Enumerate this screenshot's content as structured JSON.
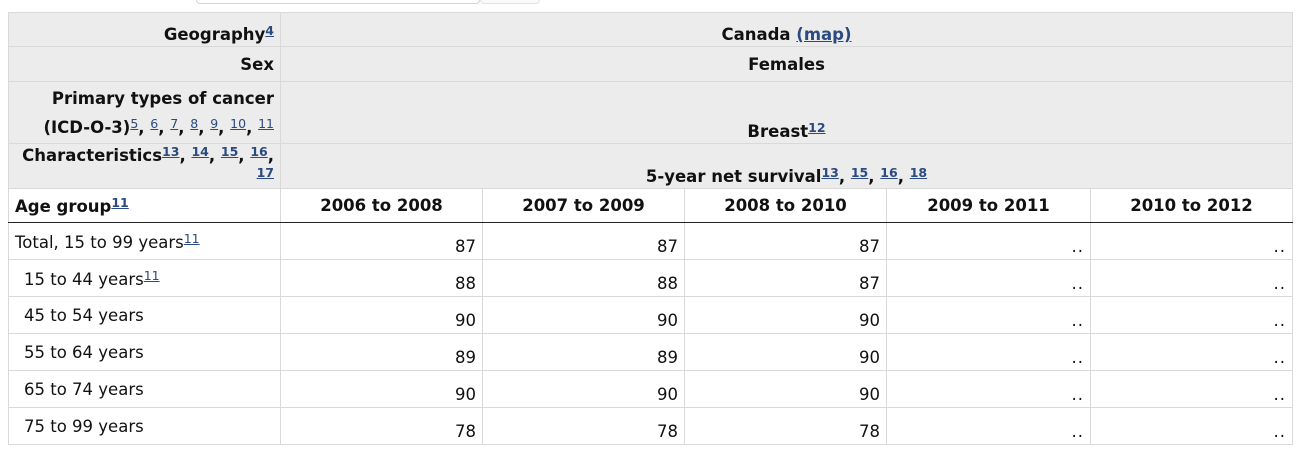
{
  "header": {
    "geography": {
      "label": "Geography",
      "fn": "4",
      "value": "Canada",
      "map_link": "(map)"
    },
    "sex": {
      "label": "Sex",
      "value": "Females"
    },
    "cancer": {
      "label_line1": "Primary types of cancer",
      "label_line2": "(ICD-O-3)",
      "fns": [
        "5",
        "6",
        "7",
        "8",
        "9",
        "10",
        "11"
      ],
      "value": "Breast",
      "value_fn": "12"
    },
    "characteristics": {
      "label": "Characteristics",
      "fns": [
        "13",
        "14",
        "15",
        "16",
        "17"
      ],
      "value": "5-year net survival",
      "value_fns": [
        "13",
        "15",
        "16",
        "18"
      ]
    }
  },
  "columns": {
    "stub_label": "Age group",
    "stub_fn": "11",
    "periods": [
      "2006 to 2008",
      "2007 to 2009",
      "2008 to 2010",
      "2009 to 2011",
      "2010 to 2012"
    ]
  },
  "rows": [
    {
      "label": "Total, 15 to 99 years",
      "fn": "11",
      "values": [
        "87",
        "87",
        "87",
        "..",
        ".."
      ]
    },
    {
      "label": "15 to 44 years",
      "fn": "11",
      "values": [
        "88",
        "88",
        "87",
        "..",
        ".."
      ]
    },
    {
      "label": "45 to 54 years",
      "values": [
        "90",
        "90",
        "90",
        "..",
        ".."
      ]
    },
    {
      "label": "55 to 64 years",
      "values": [
        "89",
        "89",
        "90",
        "..",
        ".."
      ]
    },
    {
      "label": "65 to 74 years",
      "values": [
        "90",
        "90",
        "90",
        "..",
        ".."
      ]
    },
    {
      "label": "75 to 99 years",
      "values": [
        "78",
        "78",
        "78",
        "..",
        ".."
      ]
    }
  ]
}
